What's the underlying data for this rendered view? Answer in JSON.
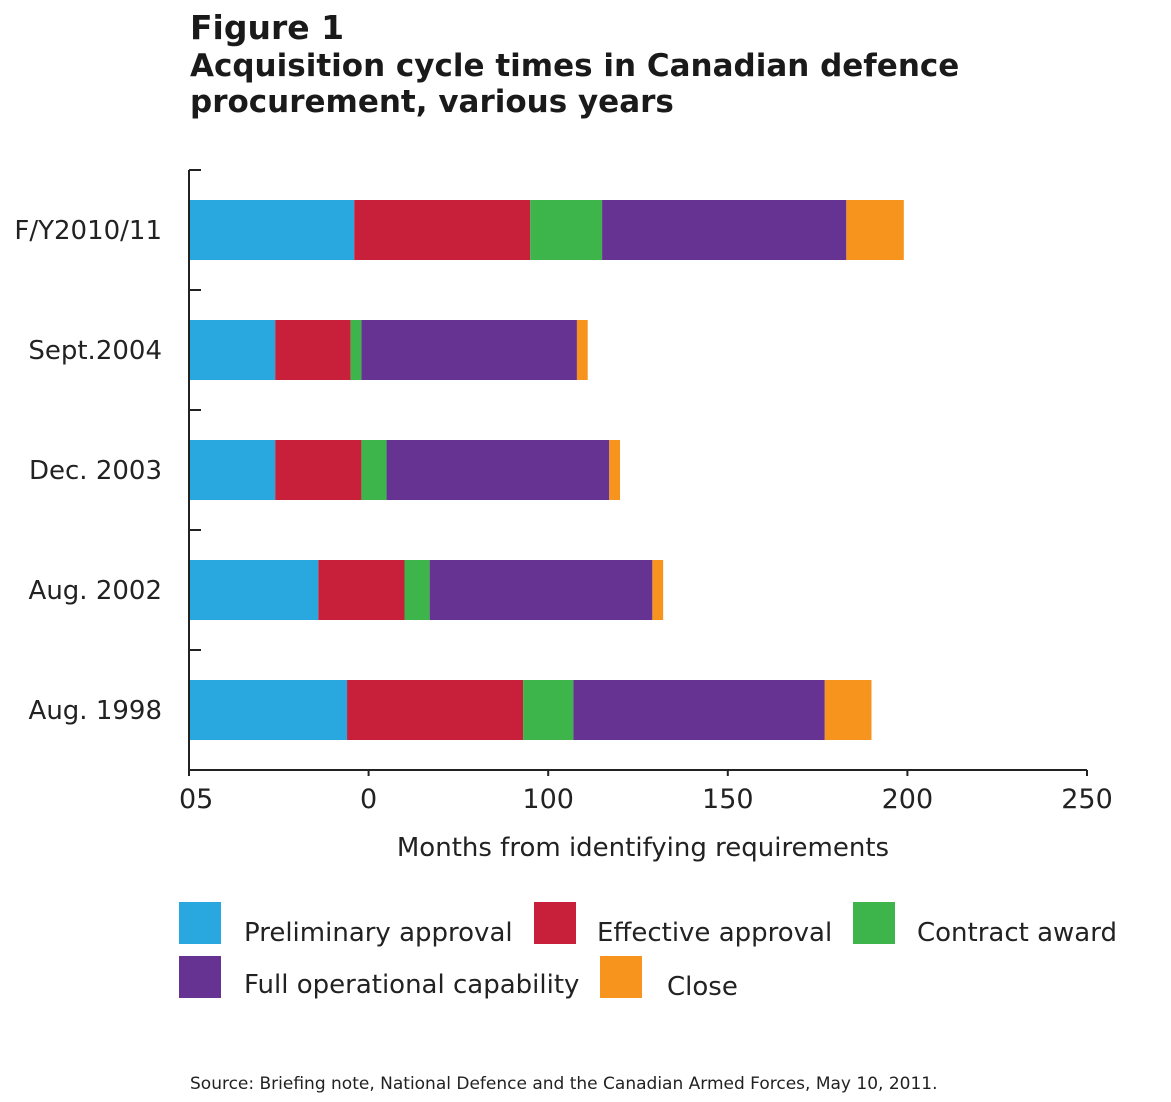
{
  "figure_label": "Figure 1",
  "title": "Acquisition cycle times in Canadian defence procurement, various years",
  "source": "Source: Briefing note, National Defence and the Canadian Armed Forces, May 10, 2011.",
  "chart_data": {
    "type": "bar",
    "orientation": "horizontal",
    "stacked": true,
    "categories": [
      "F/Y2010/11",
      "Sept.2004",
      "Dec. 2003",
      "Aug. 2002",
      "Aug. 1998"
    ],
    "series": [
      {
        "name": "Preliminary approval",
        "color": "#29a8e0",
        "values": [
          46,
          24,
          24,
          36,
          44
        ]
      },
      {
        "name": "Effective approval",
        "color": "#c8203a",
        "values": [
          49,
          21,
          24,
          24,
          49
        ]
      },
      {
        "name": "Contract award",
        "color": "#3db54a",
        "values": [
          20,
          3,
          7,
          7,
          14
        ]
      },
      {
        "name": "Full operational capability",
        "color": "#663393",
        "values": [
          68,
          60,
          62,
          62,
          70
        ]
      },
      {
        "name": "Close",
        "color": "#f7941d",
        "values": [
          16,
          3,
          3,
          3,
          13
        ]
      }
    ],
    "xlabel": "Months from identifying requirements",
    "xlim": [
      0,
      250
    ],
    "x_tick_labels": [
      "05",
      "0",
      "100",
      "150",
      "200",
      "250"
    ],
    "grid": false,
    "legend_position": "bottom"
  }
}
